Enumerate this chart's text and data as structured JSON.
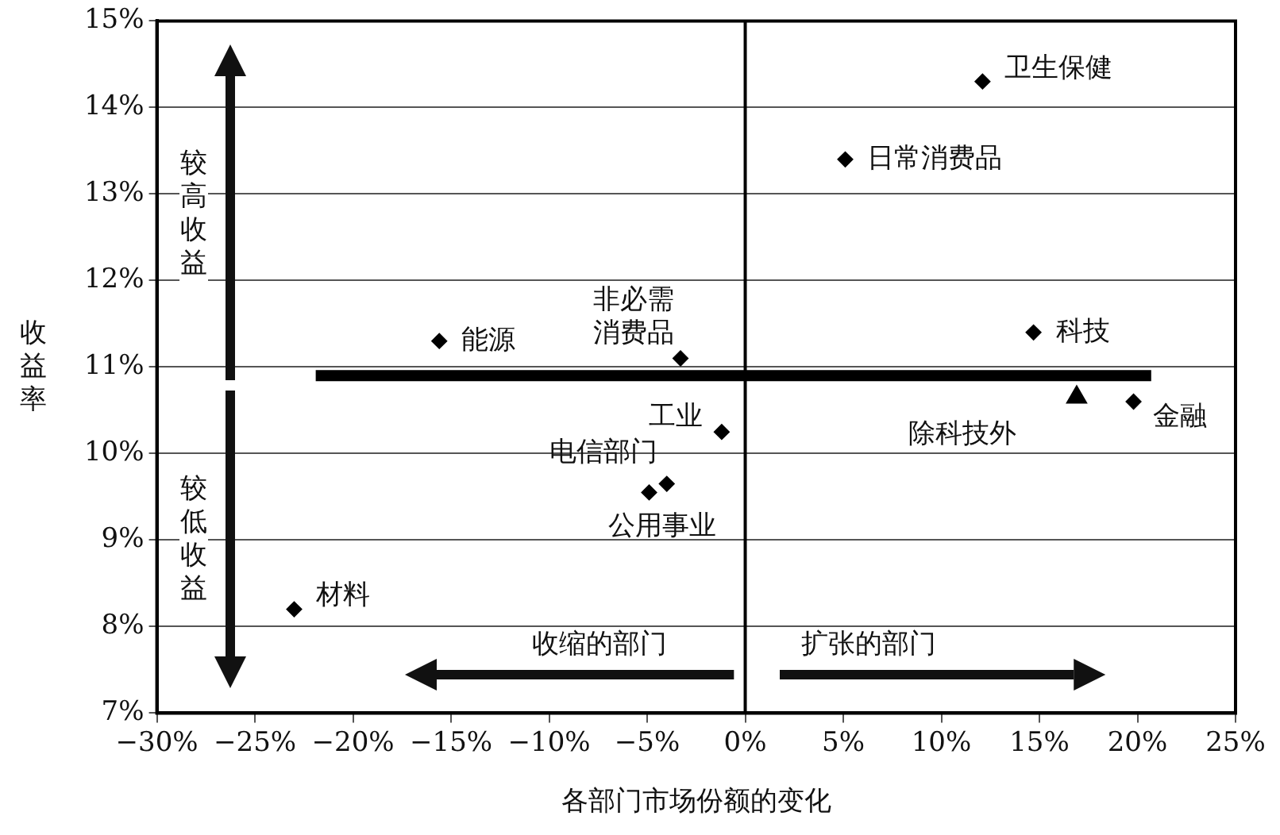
{
  "chart_data": {
    "type": "scatter",
    "xlabel": "各部门市场份额的变化",
    "ylabel": "收益率",
    "xlim": [
      -30,
      25
    ],
    "xticks": [
      {
        "value": -30,
        "label": "−30%"
      },
      {
        "value": -25,
        "label": "−25%"
      },
      {
        "value": -20,
        "label": "−20%"
      },
      {
        "value": -15,
        "label": "−15%"
      },
      {
        "value": -10,
        "label": "−10%"
      },
      {
        "value": -5,
        "label": "−5%"
      },
      {
        "value": 0,
        "label": "0%"
      },
      {
        "value": 5,
        "label": "5%"
      },
      {
        "value": 10,
        "label": "10%"
      },
      {
        "value": 15,
        "label": "15%"
      },
      {
        "value": 20,
        "label": "20%"
      },
      {
        "value": 25,
        "label": "25%"
      }
    ],
    "ylim": [
      7,
      15
    ],
    "yticks": [
      {
        "value": 7,
        "label": "7%"
      },
      {
        "value": 8,
        "label": "8%"
      },
      {
        "value": 9,
        "label": "9%"
      },
      {
        "value": 10,
        "label": "10%"
      },
      {
        "value": 11,
        "label": "11%"
      },
      {
        "value": 12,
        "label": "12%"
      },
      {
        "value": 13,
        "label": "13%"
      },
      {
        "value": 14,
        "label": "14%"
      },
      {
        "value": 15,
        "label": "15%"
      }
    ],
    "grid": "y",
    "legend": false,
    "marker": "diamond",
    "series": [
      {
        "name": "卫生保健",
        "color": "#000000",
        "x": [
          12.1
        ],
        "values": [
          14.3
        ]
      },
      {
        "name": "日常消费品",
        "color": "#000000",
        "x": [
          5.1
        ],
        "values": [
          13.4
        ]
      },
      {
        "name": "科技",
        "color": "#000000",
        "x": [
          14.7
        ],
        "values": [
          11.4
        ]
      },
      {
        "name": "非必需消费品",
        "color": "#000000",
        "x": [
          -3.3
        ],
        "values": [
          11.1
        ]
      },
      {
        "name": "能源",
        "color": "#000000",
        "x": [
          -15.6
        ],
        "values": [
          11.3
        ]
      },
      {
        "name": "工业",
        "color": "#000000",
        "x": [
          -1.2
        ],
        "values": [
          10.25
        ]
      },
      {
        "name": "电信部门",
        "color": "#000000",
        "x": [
          -4
        ],
        "values": [
          9.65
        ]
      },
      {
        "name": "公用事业",
        "color": "#000000",
        "x": [
          -4.9
        ],
        "values": [
          9.55
        ]
      },
      {
        "name": "金融",
        "color": "#000000",
        "x": [
          19.8
        ],
        "values": [
          10.6
        ]
      },
      {
        "name": "除科技外",
        "color": "#000000",
        "x": [
          16.9
        ],
        "values": [
          10.65
        ],
        "marker": "triangle"
      },
      {
        "name": "材料",
        "color": "#000000",
        "x": [
          -23
        ],
        "values": [
          8.2
        ]
      },
      {
        "type": "line",
        "color": "#000000",
        "x": [
          -21.9,
          20.7
        ],
        "values": [
          10.9,
          10.9
        ],
        "marker": "none"
      }
    ],
    "ref_lines": [
      {
        "axis": "x",
        "value": 0,
        "color": "#000000"
      }
    ],
    "annotations": [
      "较高收益",
      "较低收益",
      "收缩的部门",
      "扩张的部门"
    ]
  }
}
